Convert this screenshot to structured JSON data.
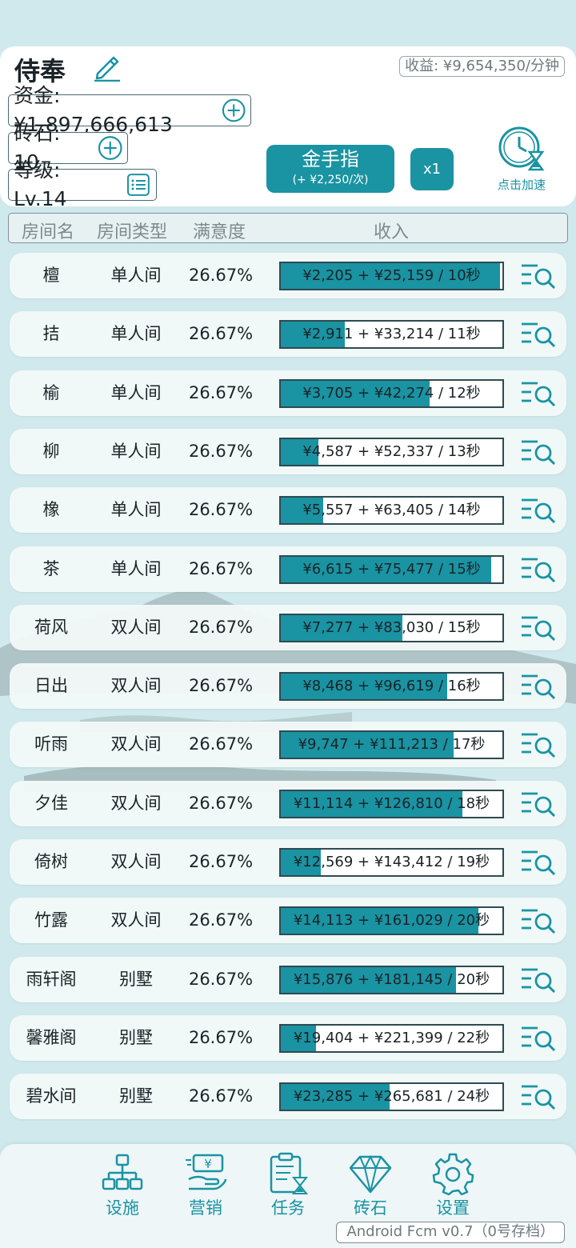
{
  "profile": {
    "name": "侍奉",
    "revenue": "收益: ¥9,654,350/分钟",
    "funds": "资金: ¥1,897,666,613",
    "gems": "砖石: 10",
    "level": "等级: Lv.14"
  },
  "actions": {
    "gold_finger": "金手指",
    "gold_finger_sub": "(+ ¥2,250/次)",
    "multiplier": "x1",
    "speed_up": "点击加速"
  },
  "table_header": {
    "name": "房间名",
    "type": "房间类型",
    "satisfaction": "满意度",
    "income": "收入"
  },
  "rooms": [
    {
      "name": "檀",
      "type": "单人间",
      "satisfaction": "26.67%",
      "income": "¥2,205 + ¥25,159 / 10秒",
      "progress": 0.99
    },
    {
      "name": "拮",
      "type": "单人间",
      "satisfaction": "26.67%",
      "income": "¥2,911 + ¥33,214 / 11秒",
      "progress": 0.29
    },
    {
      "name": "榆",
      "type": "单人间",
      "satisfaction": "26.67%",
      "income": "¥3,705 + ¥42,274 / 12秒",
      "progress": 0.67
    },
    {
      "name": "柳",
      "type": "单人间",
      "satisfaction": "26.67%",
      "income": "¥4,587 + ¥52,337 / 13秒",
      "progress": 0.17
    },
    {
      "name": "橡",
      "type": "单人间",
      "satisfaction": "26.67%",
      "income": "¥5,557 + ¥63,405 / 14秒",
      "progress": 0.19
    },
    {
      "name": "茶",
      "type": "单人间",
      "satisfaction": "26.67%",
      "income": "¥6,615 + ¥75,477 / 15秒",
      "progress": 0.95
    },
    {
      "name": "荷风",
      "type": "双人间",
      "satisfaction": "26.67%",
      "income": "¥7,277 + ¥83,030 / 15秒",
      "progress": 0.55
    },
    {
      "name": "日出",
      "type": "双人间",
      "satisfaction": "26.67%",
      "income": "¥8,468 + ¥96,619 / 16秒",
      "progress": 0.75
    },
    {
      "name": "听雨",
      "type": "双人间",
      "satisfaction": "26.67%",
      "income": "¥9,747 + ¥111,213 / 17秒",
      "progress": 0.78
    },
    {
      "name": "夕佳",
      "type": "双人间",
      "satisfaction": "26.67%",
      "income": "¥11,114 + ¥126,810 / 18秒",
      "progress": 0.82
    },
    {
      "name": "倚树",
      "type": "双人间",
      "satisfaction": "26.67%",
      "income": "¥12,569 + ¥143,412 / 19秒",
      "progress": 0.18
    },
    {
      "name": "竹露",
      "type": "双人间",
      "satisfaction": "26.67%",
      "income": "¥14,113 + ¥161,029 / 20秒",
      "progress": 0.89
    },
    {
      "name": "雨轩阁",
      "type": "别墅",
      "satisfaction": "26.67%",
      "income": "¥15,876 + ¥181,145 / 20秒",
      "progress": 0.79
    },
    {
      "name": "馨雅阁",
      "type": "别墅",
      "satisfaction": "26.67%",
      "income": "¥19,404 + ¥221,399 / 22秒",
      "progress": 0.16
    },
    {
      "name": "碧水间",
      "type": "别墅",
      "satisfaction": "26.67%",
      "income": "¥23,285 + ¥265,681 / 24秒",
      "progress": 0.49
    }
  ],
  "nav": {
    "facilities": "设施",
    "marketing": "营销",
    "tasks": "任务",
    "gems": "砖石",
    "settings": "设置"
  },
  "version": "Android Fcm v0.7（0号存档）",
  "colors": {
    "accent": "#1a93a2",
    "background": "#cfe9ec"
  }
}
